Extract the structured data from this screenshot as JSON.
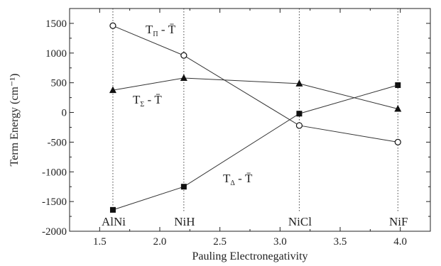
{
  "chart_data": {
    "type": "line",
    "xlabel": "Pauling Electronegativity",
    "ylabel": "Term Energy (cm⁻¹)",
    "xlim": [
      1.25,
      4.25
    ],
    "ylim": [
      -2000,
      1750
    ],
    "x_ticks": [
      1.5,
      2.0,
      2.5,
      3.0,
      3.5,
      4.0
    ],
    "x_tick_labels": [
      "1.5",
      "2.0",
      "2.5",
      "3.0",
      "3.5",
      "4.0"
    ],
    "y_ticks": [
      -2000,
      -1500,
      -1000,
      -500,
      0,
      500,
      1000,
      1500
    ],
    "y_tick_labels": [
      "-2000",
      "-1500",
      "-1000",
      "-500",
      "0",
      "500",
      "1000",
      "1500"
    ],
    "grid": false,
    "x": [
      1.61,
      2.2,
      3.16,
      3.98
    ],
    "molecules": [
      "AlNi",
      "NiH",
      "NiCl",
      "NiF"
    ],
    "series": [
      {
        "label_main": "T",
        "label_sub": "Π",
        "label_rest": " - T̄",
        "marker": "open-circle",
        "values": [
          1460,
          960,
          -220,
          -500
        ]
      },
      {
        "label_main": "T",
        "label_sub": "Σ",
        "label_rest": " - T̄",
        "marker": "filled-triangle",
        "values": [
          375,
          580,
          485,
          60
        ]
      },
      {
        "label_main": "T",
        "label_sub": "Δ",
        "label_rest": " - T̄",
        "marker": "filled-square",
        "values": [
          -1640,
          -1250,
          -20,
          460
        ]
      }
    ]
  }
}
